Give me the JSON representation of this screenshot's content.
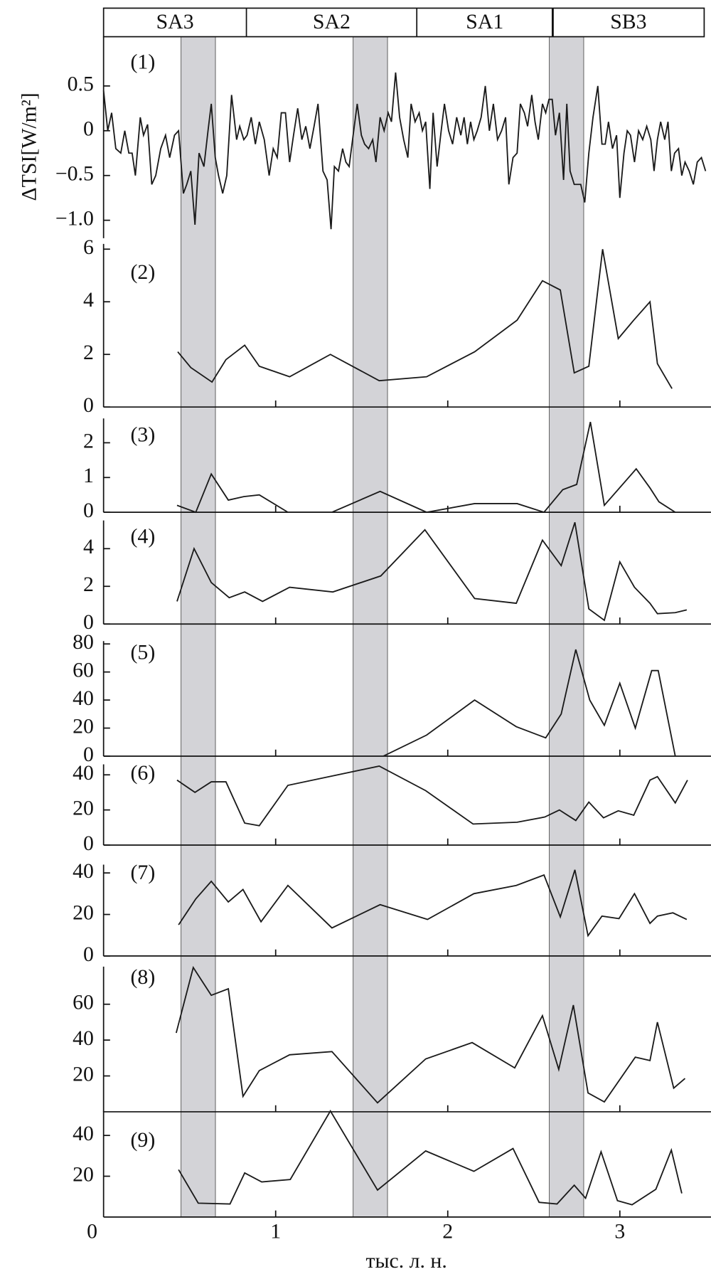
{
  "chart_data": [
    {
      "type": "line",
      "label": "(1)",
      "ylabel": "ΔTSI[W/m²]",
      "color": "#1a1a1a",
      "xlim": [
        0,
        3.52
      ],
      "ylim": [
        -1.2,
        1.05
      ],
      "yticks": [
        0.5,
        0,
        {
          "value": -0.5,
          "label": "−0.5"
        },
        {
          "value": -1,
          "label": "−1.0"
        }
      ],
      "periods": {
        "labels": [
          "SA3",
          "SA2",
          "SA1",
          "SB3"
        ],
        "bounds": [
          0,
          0.83,
          1.82,
          2.61,
          3.49
        ]
      },
      "shaded_intervals": [
        [
          0.45,
          0.65
        ],
        [
          1.45,
          1.65
        ],
        [
          2.59,
          2.79
        ]
      ],
      "x": [
        0,
        0.024,
        0.047,
        0.071,
        0.1,
        0.123,
        0.147,
        0.166,
        0.185,
        0.213,
        0.232,
        0.256,
        0.28,
        0.303,
        0.332,
        0.36,
        0.384,
        0.412,
        0.436,
        0.464,
        0.483,
        0.507,
        0.531,
        0.555,
        0.583,
        0.607,
        0.626,
        0.649,
        0.668,
        0.692,
        0.716,
        0.744,
        0.773,
        0.791,
        0.815,
        0.834,
        0.858,
        0.882,
        0.905,
        0.934,
        0.962,
        0.986,
        1.009,
        1.033,
        1.057,
        1.081,
        1.104,
        1.128,
        1.152,
        1.175,
        1.199,
        1.223,
        1.246,
        1.275,
        1.299,
        1.322,
        1.341,
        1.365,
        1.389,
        1.408,
        1.427,
        1.45,
        1.474,
        1.498,
        1.517,
        1.54,
        1.564,
        1.583,
        1.607,
        1.63,
        1.654,
        1.673,
        1.697,
        1.72,
        1.744,
        1.768,
        1.787,
        1.81,
        1.834,
        1.853,
        1.872,
        1.896,
        1.915,
        1.938,
        1.962,
        1.981,
        2.005,
        2.028,
        2.052,
        2.076,
        2.095,
        2.114,
        2.133,
        2.152,
        2.171,
        2.194,
        2.218,
        2.242,
        2.265,
        2.289,
        2.313,
        2.336,
        2.355,
        2.379,
        2.403,
        2.422,
        2.445,
        2.464,
        2.488,
        2.507,
        2.526,
        2.55,
        2.569,
        2.588,
        2.607,
        2.626,
        2.649,
        2.673,
        2.692,
        2.711,
        2.735,
        2.754,
        2.773,
        2.796,
        2.82,
        2.844,
        2.872,
        2.896,
        2.915,
        2.934,
        2.957,
        2.981,
        3,
        3.024,
        3.043,
        3.062,
        3.085,
        3.109,
        3.133,
        3.156,
        3.18,
        3.199,
        3.218,
        3.237,
        3.261,
        3.28,
        3.299,
        3.318,
        3.341,
        3.36,
        3.379,
        3.403,
        3.427,
        3.45,
        3.474,
        3.498
      ],
      "values": [
        0.45,
        0,
        0.2,
        -0.2,
        -0.25,
        0,
        -0.25,
        -0.25,
        -0.5,
        0.15,
        -0.05,
        0.07,
        -0.6,
        -0.5,
        -0.2,
        -0.05,
        -0.3,
        -0.05,
        0,
        -0.7,
        -0.6,
        -0.45,
        -1.05,
        -0.25,
        -0.4,
        0,
        0.3,
        -0.3,
        -0.5,
        -0.7,
        -0.5,
        0.4,
        -0.1,
        0.05,
        -0.1,
        -0.05,
        0.15,
        -0.15,
        0.1,
        -0.1,
        -0.5,
        -0.2,
        -0.3,
        0.2,
        0.2,
        -0.35,
        -0.05,
        0.25,
        -0.1,
        0.05,
        -0.2,
        0.05,
        0.3,
        -0.45,
        -0.55,
        -1.1,
        -0.4,
        -0.45,
        -0.2,
        -0.35,
        -0.4,
        -0.05,
        0.3,
        -0.05,
        -0.15,
        -0.2,
        -0.1,
        -0.35,
        0.15,
        0,
        0.2,
        0.1,
        0.65,
        0.15,
        -0.1,
        -0.3,
        0.3,
        0.1,
        0.2,
        0,
        0.1,
        -0.65,
        0.2,
        -0.4,
        0,
        0.3,
        0,
        -0.15,
        0.15,
        -0.05,
        0.15,
        -0.15,
        0.1,
        -0.1,
        0,
        0.15,
        0.5,
        0,
        0.3,
        -0.1,
        0,
        0.15,
        -0.6,
        -0.3,
        -0.25,
        0.3,
        0.2,
        0.05,
        0.4,
        0.1,
        -0.1,
        0.3,
        0.2,
        0.35,
        0.35,
        -0.05,
        0.2,
        -0.55,
        0.3,
        -0.45,
        -0.6,
        -0.6,
        -0.6,
        -0.8,
        -0.25,
        0.15,
        0.5,
        -0.15,
        -0.15,
        0.1,
        -0.2,
        -0.05,
        -0.75,
        -0.25,
        0,
        -0.05,
        -0.35,
        0,
        -0.1,
        0.05,
        -0.1,
        -0.45,
        -0.1,
        0.1,
        -0.1,
        0.1,
        -0.45,
        -0.25,
        -0.2,
        -0.5,
        -0.35,
        -0.45,
        -0.6,
        -0.35,
        -0.3,
        -0.45
      ]
    },
    {
      "type": "line",
      "label": "(2)",
      "color": "#1a1a1a",
      "xlim": [
        0,
        3.52
      ],
      "ylim": [
        0,
        6.2
      ],
      "yticks": [
        0,
        2,
        4,
        6
      ],
      "x": [
        0.431,
        0.507,
        0.63,
        0.711,
        0.82,
        0.905,
        1.081,
        1.318,
        1.602,
        1.877,
        2.156,
        2.403,
        2.55,
        2.654,
        2.735,
        2.82,
        2.9,
        2.991,
        3.081,
        3.175,
        3.218,
        3.303
      ],
      "values": [
        2.1,
        1.5,
        0.95,
        1.8,
        2.35,
        1.55,
        1.15,
        2.0,
        1.0,
        1.15,
        2.1,
        3.3,
        4.8,
        4.45,
        1.3,
        1.55,
        6.0,
        2.6,
        3.3,
        4.0,
        1.65,
        0.7
      ]
    },
    {
      "type": "line",
      "label": "(3)",
      "color": "#1a1a1a",
      "xlim": [
        0,
        3.52
      ],
      "ylim": [
        0,
        2.7
      ],
      "yticks": [
        0,
        1,
        2
      ],
      "x": [
        0.427,
        0.536,
        0.626,
        0.725,
        0.815,
        0.905,
        1.071,
        1.327,
        1.607,
        1.877,
        2.156,
        2.403,
        2.559,
        2.668,
        2.749,
        2.829,
        2.91,
        3.095,
        3.175,
        3.227,
        3.322
      ],
      "values": [
        0.2,
        0,
        1.1,
        0.35,
        0.45,
        0.5,
        0,
        0,
        0.6,
        0,
        0.25,
        0.25,
        0,
        0.65,
        0.8,
        2.6,
        0.2,
        1.25,
        0.7,
        0.3,
        0
      ]
    },
    {
      "type": "line",
      "label": "(4)",
      "color": "#1a1a1a",
      "xlim": [
        0,
        3.52
      ],
      "ylim": [
        0,
        5.5
      ],
      "yticks": [
        0,
        2,
        4
      ],
      "x": [
        0.427,
        0.526,
        0.626,
        0.73,
        0.82,
        0.924,
        1.081,
        1.332,
        1.611,
        1.867,
        2.156,
        2.398,
        2.55,
        2.659,
        2.739,
        2.82,
        2.91,
        3.0,
        3.085,
        3.175,
        3.218,
        3.322,
        3.389
      ],
      "values": [
        1.2,
        4.0,
        2.2,
        1.4,
        1.7,
        1.2,
        1.95,
        1.7,
        2.55,
        5.0,
        1.35,
        1.1,
        4.45,
        3.1,
        5.4,
        0.8,
        0.2,
        3.3,
        1.95,
        1.1,
        0.55,
        0.6,
        0.75
      ]
    },
    {
      "type": "line",
      "label": "(5)",
      "color": "#1a1a1a",
      "xlim": [
        0,
        3.52
      ],
      "ylim": [
        0,
        82
      ],
      "yticks": [
        0,
        20,
        40,
        60,
        80
      ],
      "x": [
        1.626,
        1.877,
        2.156,
        2.398,
        2.569,
        2.659,
        2.744,
        2.825,
        2.91,
        3.0,
        3.09,
        3.185,
        3.223,
        3.322
      ],
      "values": [
        0,
        15,
        40,
        21,
        13,
        30,
        76,
        40,
        22,
        52,
        20,
        61,
        61,
        0
      ]
    },
    {
      "type": "line",
      "label": "(6)",
      "color": "#1a1a1a",
      "xlim": [
        0,
        3.52
      ],
      "ylim": [
        0,
        46
      ],
      "yticks": [
        0,
        20,
        40
      ],
      "x": [
        0.427,
        0.531,
        0.626,
        0.711,
        0.82,
        0.905,
        1.071,
        1.602,
        1.872,
        2.147,
        2.403,
        2.564,
        2.649,
        2.744,
        2.82,
        2.905,
        2.991,
        3.081,
        3.175,
        3.218,
        3.322,
        3.393
      ],
      "values": [
        37,
        30,
        36,
        36,
        12.5,
        11,
        34,
        45,
        31,
        12,
        13,
        16,
        20,
        14,
        24.5,
        15.5,
        19.5,
        17,
        37,
        39,
        24,
        37
      ]
    },
    {
      "type": "line",
      "label": "(7)",
      "color": "#1a1a1a",
      "xlim": [
        0,
        3.52
      ],
      "ylim": [
        0,
        44
      ],
      "yticks": [
        0,
        20,
        40
      ],
      "x": [
        0.436,
        0.536,
        0.626,
        0.725,
        0.81,
        0.915,
        1.071,
        1.327,
        1.607,
        1.882,
        2.152,
        2.398,
        2.559,
        2.654,
        2.739,
        2.815,
        2.896,
        2.995,
        3.085,
        3.175,
        3.218,
        3.308,
        3.389
      ],
      "values": [
        15,
        27.5,
        36,
        26,
        32,
        16.5,
        34,
        13.5,
        24.7,
        17.6,
        30,
        34,
        39,
        18.8,
        41.5,
        9.8,
        19.2,
        18,
        30,
        15.7,
        19.2,
        20.8,
        17.6
      ]
    },
    {
      "type": "line",
      "label": "(8)",
      "color": "#1a1a1a",
      "xlim": [
        0,
        3.52
      ],
      "ylim": [
        0,
        81
      ],
      "yticks": [
        20,
        40,
        60
      ],
      "x": [
        0.422,
        0.521,
        0.626,
        0.725,
        0.81,
        0.905,
        1.081,
        1.327,
        1.592,
        1.872,
        2.142,
        2.389,
        2.55,
        2.645,
        2.73,
        2.815,
        2.91,
        3.09,
        3.175,
        3.218,
        3.313,
        3.379
      ],
      "values": [
        44,
        80.5,
        65,
        68.6,
        8.6,
        23,
        31.8,
        33.6,
        5,
        29.5,
        38.6,
        24.5,
        53.6,
        23.6,
        59.5,
        10.5,
        5.5,
        30.5,
        28.6,
        50,
        13.2,
        18.6
      ]
    },
    {
      "type": "line",
      "label": "(9)",
      "color": "#1a1a1a",
      "xlim": [
        0,
        3.52
      ],
      "ylim": [
        0,
        52
      ],
      "yticks": [
        20,
        40
      ],
      "xticks": [
        0,
        1,
        2,
        3
      ],
      "xlabel": "тыс. л. н.",
      "x": [
        0.436,
        0.55,
        0.735,
        0.82,
        0.919,
        1.085,
        1.318,
        1.592,
        1.872,
        2.152,
        2.379,
        2.531,
        2.635,
        2.735,
        2.801,
        2.891,
        2.986,
        3.071,
        3.209,
        3.299,
        3.36
      ],
      "values": [
        23.2,
        6.8,
        6.4,
        21.6,
        17.2,
        18.4,
        52,
        13.2,
        32.4,
        22.4,
        33.6,
        7.2,
        6.4,
        15.6,
        9.2,
        32,
        8,
        6,
        13.6,
        32.8,
        11.6
      ]
    }
  ]
}
